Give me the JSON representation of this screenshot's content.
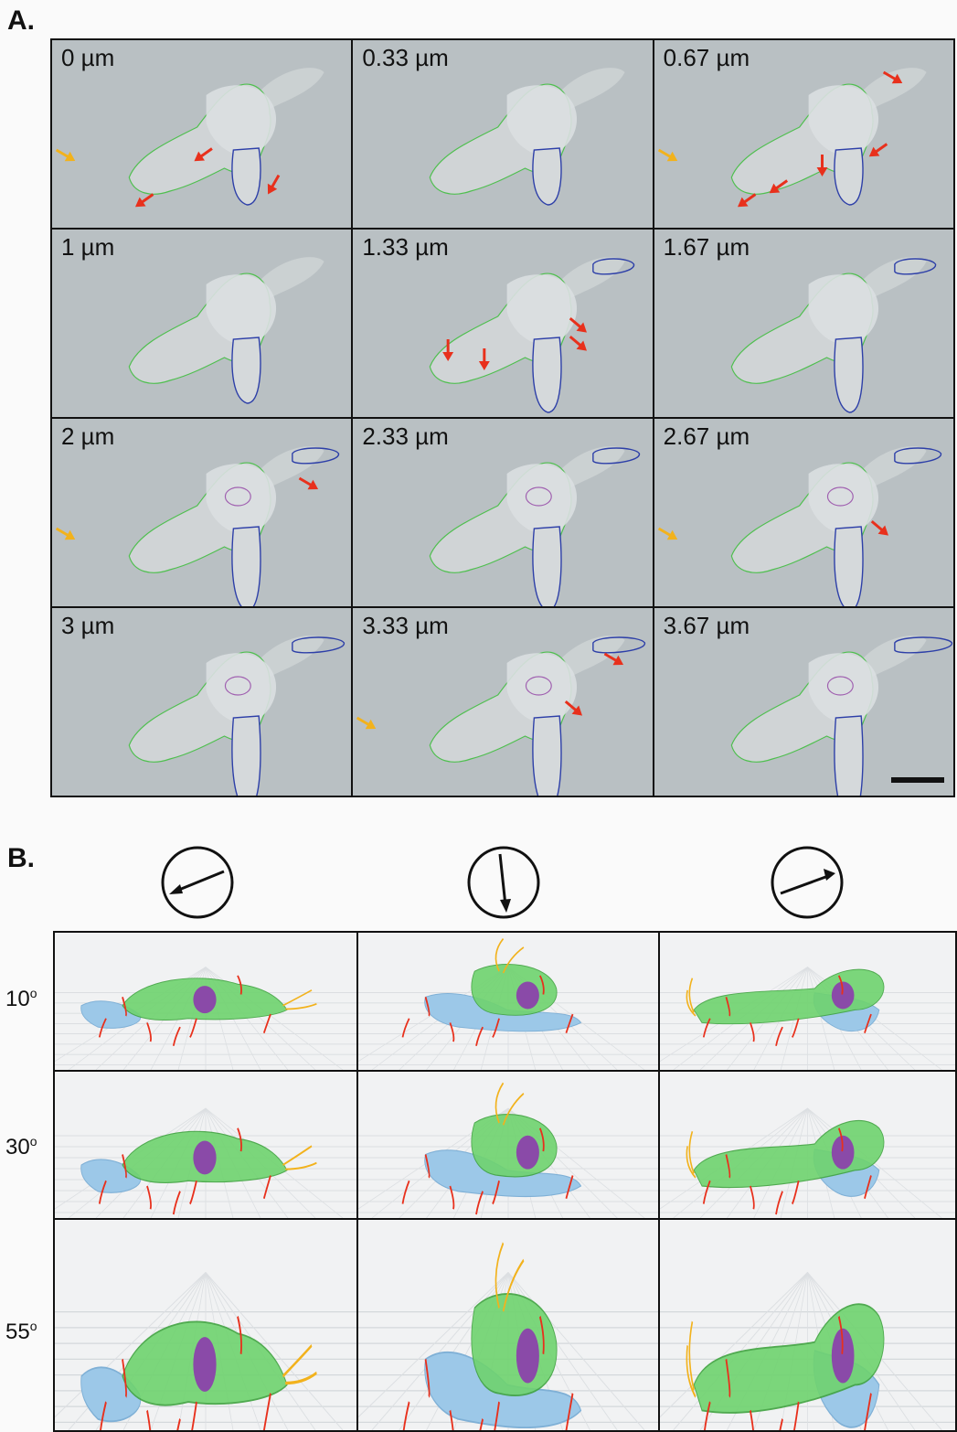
{
  "panel_a": {
    "label": "A.",
    "frames": [
      "0 µm",
      "0.33 µm",
      "0.67 µm",
      "1 µm",
      "1.33 µm",
      "1.67 µm",
      "2 µm",
      "2.33 µm",
      "2.67 µm",
      "3 µm",
      "3.33 µm",
      "3.67 µm"
    ]
  },
  "panel_b": {
    "label": "B.",
    "angles": [
      {
        "value": "10",
        "unit": "o"
      },
      {
        "value": "30",
        "unit": "o"
      },
      {
        "value": "55",
        "unit": "o"
      }
    ],
    "view_directions": [
      "arrow-lower-left-icon",
      "arrow-down-icon",
      "arrow-upper-right-icon"
    ]
  },
  "colors": {
    "cell_outline": "#4fbf4f",
    "pseudopod_outline": "#2d3fa8",
    "nucleus_outline": "#a060b0",
    "arrow_red": "#e8301c",
    "arrow_yellow": "#f2b21c",
    "mesh_green": "#6fd36f",
    "pseudopod_blue": "#9cc8e8",
    "nucleus_purple": "#8a4aa8",
    "background_gray": "#b9c0c3"
  }
}
